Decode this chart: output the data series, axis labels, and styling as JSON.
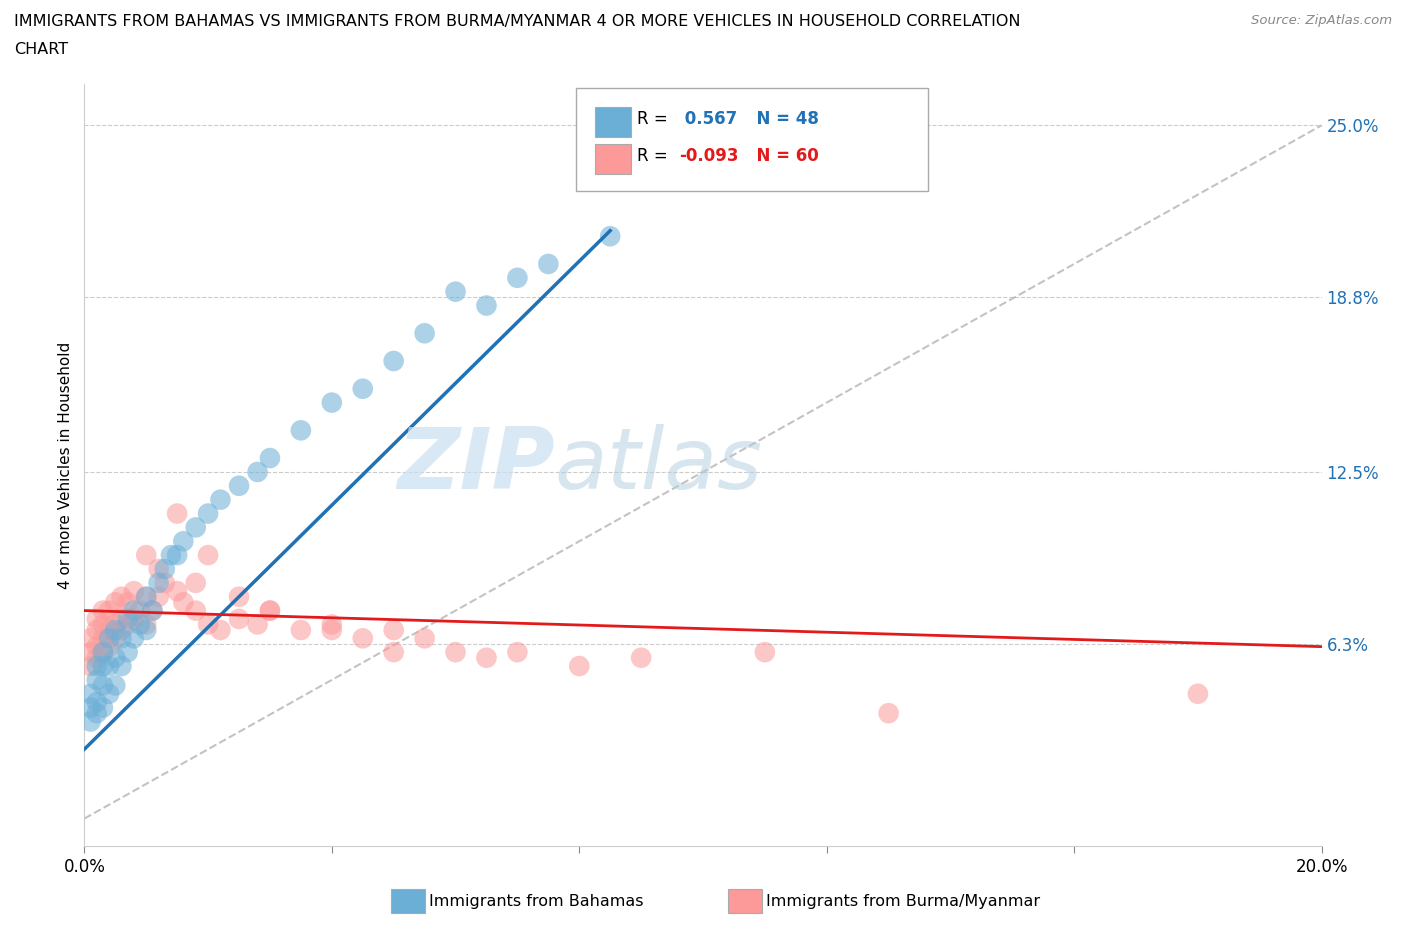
{
  "title_line1": "IMMIGRANTS FROM BAHAMAS VS IMMIGRANTS FROM BURMA/MYANMAR 4 OR MORE VEHICLES IN HOUSEHOLD CORRELATION",
  "title_line2": "CHART",
  "source_text": "Source: ZipAtlas.com",
  "ylabel": "4 or more Vehicles in Household",
  "xlim": [
    0.0,
    0.2
  ],
  "ylim": [
    -0.01,
    0.265
  ],
  "ytick_labels": [
    "6.3%",
    "12.5%",
    "18.8%",
    "25.0%"
  ],
  "ytick_values": [
    0.063,
    0.125,
    0.188,
    0.25
  ],
  "grid_color": "#cccccc",
  "watermark_text1": "ZIP",
  "watermark_text2": "atlas",
  "color_bahamas": "#6baed6",
  "color_burma": "#fb9a99",
  "color_bahamas_line": "#2171b5",
  "color_burma_line": "#e31a1c",
  "color_diagonal": "#aaaaaa",
  "bahamas_x": [
    0.001,
    0.001,
    0.001,
    0.002,
    0.002,
    0.002,
    0.002,
    0.003,
    0.003,
    0.003,
    0.003,
    0.004,
    0.004,
    0.004,
    0.005,
    0.005,
    0.005,
    0.006,
    0.006,
    0.007,
    0.007,
    0.008,
    0.008,
    0.009,
    0.01,
    0.01,
    0.011,
    0.012,
    0.013,
    0.014,
    0.015,
    0.016,
    0.018,
    0.02,
    0.022,
    0.025,
    0.028,
    0.03,
    0.035,
    0.04,
    0.045,
    0.05,
    0.055,
    0.06,
    0.065,
    0.07,
    0.075,
    0.085
  ],
  "bahamas_y": [
    0.035,
    0.04,
    0.045,
    0.038,
    0.042,
    0.05,
    0.055,
    0.04,
    0.048,
    0.055,
    0.06,
    0.045,
    0.055,
    0.065,
    0.048,
    0.058,
    0.068,
    0.055,
    0.065,
    0.06,
    0.072,
    0.065,
    0.075,
    0.07,
    0.068,
    0.08,
    0.075,
    0.085,
    0.09,
    0.095,
    0.095,
    0.1,
    0.105,
    0.11,
    0.115,
    0.12,
    0.125,
    0.13,
    0.14,
    0.15,
    0.155,
    0.165,
    0.175,
    0.19,
    0.185,
    0.195,
    0.2,
    0.21
  ],
  "burma_x": [
    0.001,
    0.001,
    0.001,
    0.002,
    0.002,
    0.002,
    0.002,
    0.003,
    0.003,
    0.003,
    0.003,
    0.004,
    0.004,
    0.004,
    0.005,
    0.005,
    0.005,
    0.006,
    0.006,
    0.006,
    0.007,
    0.007,
    0.008,
    0.008,
    0.009,
    0.01,
    0.01,
    0.011,
    0.012,
    0.013,
    0.015,
    0.016,
    0.018,
    0.02,
    0.022,
    0.025,
    0.028,
    0.03,
    0.035,
    0.04,
    0.045,
    0.05,
    0.055,
    0.06,
    0.065,
    0.07,
    0.08,
    0.09,
    0.11,
    0.13,
    0.01,
    0.012,
    0.015,
    0.018,
    0.02,
    0.025,
    0.03,
    0.04,
    0.05,
    0.18
  ],
  "burma_y": [
    0.055,
    0.06,
    0.065,
    0.058,
    0.062,
    0.068,
    0.072,
    0.06,
    0.065,
    0.07,
    0.075,
    0.062,
    0.068,
    0.075,
    0.065,
    0.07,
    0.078,
    0.068,
    0.072,
    0.08,
    0.07,
    0.078,
    0.072,
    0.082,
    0.075,
    0.07,
    0.08,
    0.075,
    0.08,
    0.085,
    0.082,
    0.078,
    0.075,
    0.07,
    0.068,
    0.072,
    0.07,
    0.075,
    0.068,
    0.07,
    0.065,
    0.068,
    0.065,
    0.06,
    0.058,
    0.06,
    0.055,
    0.058,
    0.06,
    0.038,
    0.095,
    0.09,
    0.11,
    0.085,
    0.095,
    0.08,
    0.075,
    0.068,
    0.06,
    0.045
  ],
  "bahamas_line_x": [
    0.0,
    0.085
  ],
  "bahamas_line_y_intercept": 0.025,
  "bahamas_line_slope": 2.2,
  "burma_line_x": [
    0.0,
    0.2
  ],
  "burma_line_y_start": 0.075,
  "burma_line_y_end": 0.062
}
